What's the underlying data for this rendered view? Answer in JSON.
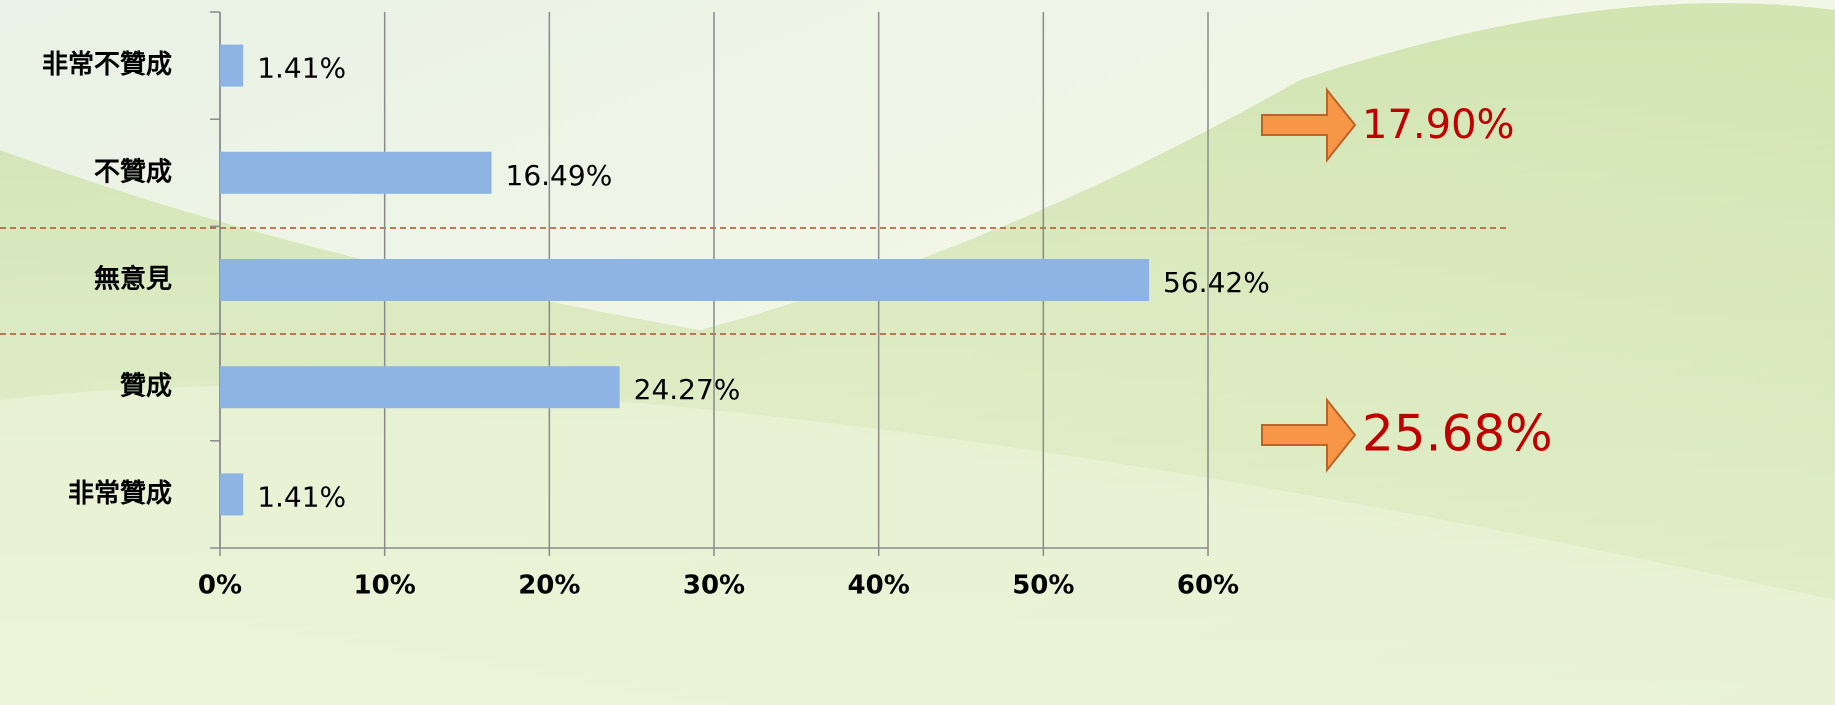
{
  "chart_data": {
    "type": "barh",
    "categories": [
      "非常不贊成",
      "不贊成",
      "無意見",
      "贊成",
      "非常贊成"
    ],
    "values": [
      1.41,
      16.49,
      56.42,
      24.27,
      1.41
    ],
    "value_labels": [
      "1.41%",
      "16.49%",
      "56.42%",
      "24.27%",
      "1.41%"
    ],
    "color": "#8eb4e3",
    "xlim": [
      0,
      60
    ],
    "xticks": [
      {
        "value": 0,
        "label": "0%"
      },
      {
        "value": 10,
        "label": "10%"
      },
      {
        "value": 20,
        "label": "20%"
      },
      {
        "value": 30,
        "label": "30%"
      },
      {
        "value": 40,
        "label": "40%"
      },
      {
        "value": 50,
        "label": "50%"
      },
      {
        "value": 60,
        "label": "60%"
      }
    ],
    "grid": true,
    "annotations": [
      "17.90%",
      "25.68%"
    ]
  }
}
